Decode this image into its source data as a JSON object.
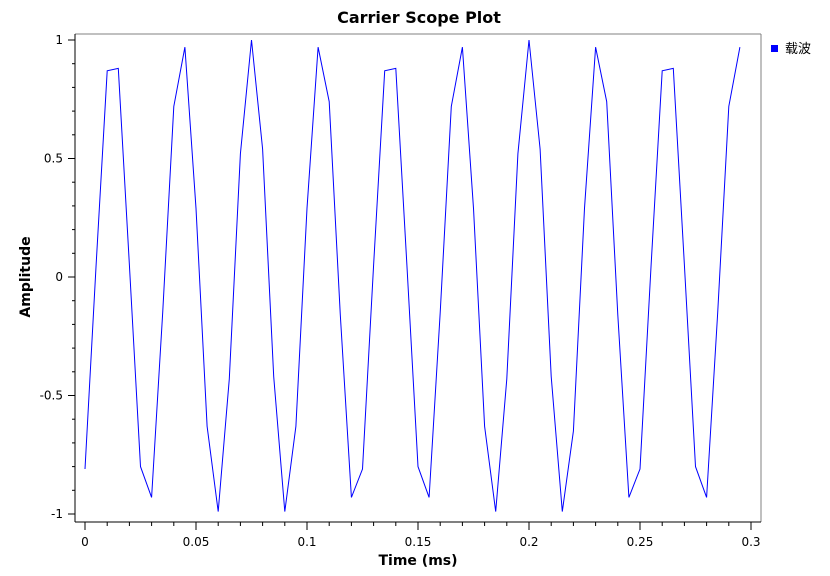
{
  "window": {
    "title": "Carrier Scope Plot"
  },
  "colors": {
    "series": "#0000ff",
    "frame": "#808080",
    "axis": "#000000"
  },
  "chart_data": {
    "type": "line",
    "title": "Carrier Scope Plot",
    "xlabel": "Time (ms)",
    "ylabel": "Amplitude",
    "xlim": [
      0,
      0.3
    ],
    "ylim": [
      -1,
      1
    ],
    "xticks": [
      0,
      0.05,
      0.1,
      0.15,
      0.2,
      0.25,
      0.3
    ],
    "xtick_labels": [
      "0",
      "0.05",
      "0.1",
      "0.15",
      "0.2",
      "0.25",
      "0.3"
    ],
    "yticks": [
      1,
      0.5,
      0,
      -0.5,
      -1
    ],
    "ytick_labels": [
      "1",
      "0.5",
      "0",
      "-0.5",
      "-1"
    ],
    "grid": false,
    "legend_position": "top-right",
    "series": [
      {
        "name": "载波",
        "color": "#0000ff",
        "x": [
          0,
          0.005,
          0.01,
          0.015,
          0.02,
          0.025,
          0.03,
          0.035,
          0.04,
          0.045,
          0.05,
          0.055,
          0.06,
          0.065,
          0.07,
          0.075,
          0.08,
          0.085,
          0.09,
          0.095,
          0.1,
          0.105,
          0.11,
          0.115,
          0.12,
          0.125,
          0.13,
          0.135,
          0.14,
          0.145,
          0.15,
          0.155,
          0.16,
          0.165,
          0.17,
          0.175,
          0.18,
          0.185,
          0.19,
          0.195,
          0.2,
          0.205,
          0.21,
          0.215,
          0.22,
          0.225,
          0.23,
          0.235,
          0.24,
          0.245,
          0.25,
          0.255,
          0.26,
          0.265,
          0.27,
          0.275,
          0.28,
          0.285,
          0.29,
          0.295
        ],
        "y": [
          -0.81,
          0.05,
          0.87,
          0.88,
          0.05,
          -0.8,
          -0.93,
          -0.15,
          0.72,
          0.97,
          0.29,
          -0.63,
          -0.99,
          -0.43,
          0.52,
          1.0,
          0.54,
          -0.42,
          -0.99,
          -0.63,
          0.29,
          0.97,
          0.74,
          -0.16,
          -0.93,
          -0.81,
          0.05,
          0.87,
          0.88,
          0.05,
          -0.8,
          -0.93,
          -0.15,
          0.72,
          0.97,
          0.29,
          -0.63,
          -0.99,
          -0.43,
          0.52,
          1.0,
          0.54,
          -0.42,
          -0.99,
          -0.65,
          0.29,
          0.97,
          0.74,
          -0.16,
          -0.93,
          -0.81,
          0.05,
          0.87,
          0.88,
          0.05,
          -0.8,
          -0.93,
          -0.15,
          0.72,
          0.97
        ]
      }
    ]
  }
}
